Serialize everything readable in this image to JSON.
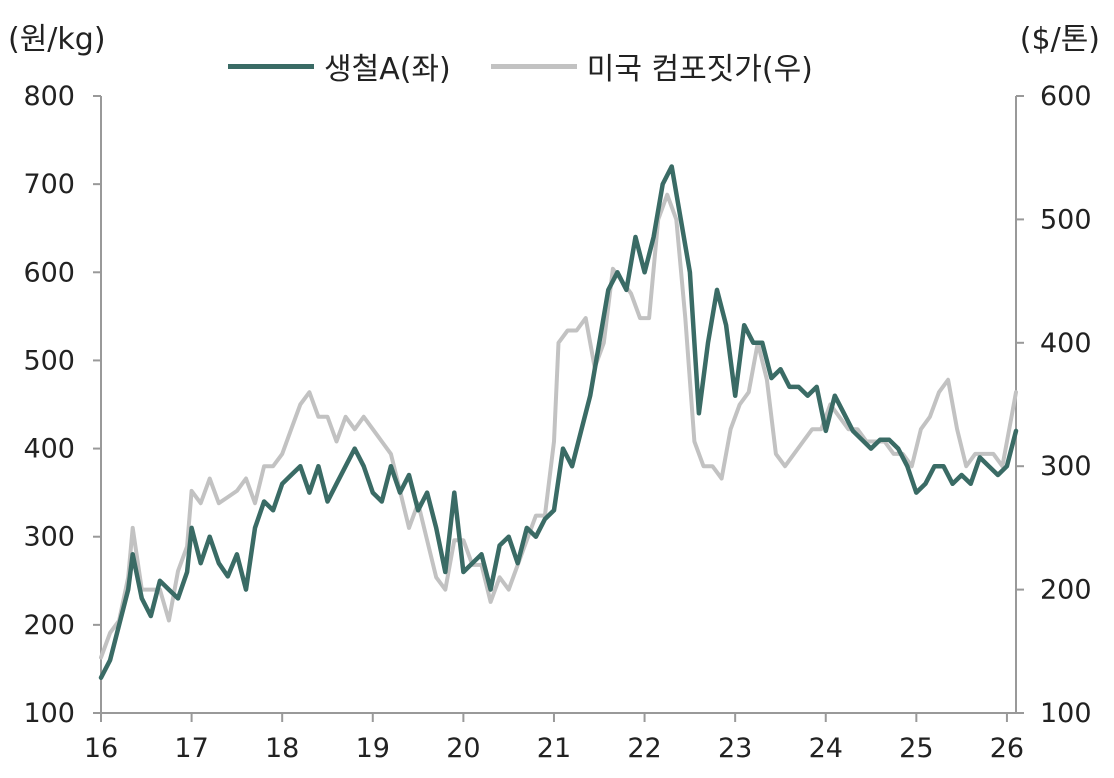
{
  "units": {
    "left": "(원/kg)",
    "right": "($/톤)"
  },
  "colors": {
    "pig_iron": "#3a6b65",
    "scrap": "#c2c2c2",
    "axis": "#999999"
  },
  "chart_data": {
    "type": "line",
    "legend_position": "top",
    "grid": false,
    "x_ticks": [
      "16",
      "17",
      "18",
      "19",
      "20",
      "21",
      "22",
      "23",
      "24",
      "25",
      "26"
    ],
    "x_range": [
      16,
      26.1
    ],
    "y_left": {
      "ticks": [
        100,
        200,
        300,
        400,
        500,
        600,
        700,
        800
      ],
      "range": [
        100,
        800
      ]
    },
    "y_right": {
      "ticks": [
        100,
        200,
        300,
        400,
        500,
        600
      ],
      "range": [
        100,
        600
      ]
    },
    "series": [
      {
        "name": "생철A(좌)",
        "axis": "left",
        "x": [
          16.0,
          16.1,
          16.2,
          16.3,
          16.35,
          16.45,
          16.55,
          16.65,
          16.75,
          16.85,
          16.95,
          17.0,
          17.1,
          17.2,
          17.3,
          17.4,
          17.5,
          17.6,
          17.7,
          17.8,
          17.9,
          18.0,
          18.1,
          18.2,
          18.3,
          18.4,
          18.5,
          18.6,
          18.7,
          18.8,
          18.9,
          19.0,
          19.1,
          19.2,
          19.3,
          19.4,
          19.5,
          19.6,
          19.7,
          19.8,
          19.9,
          20.0,
          20.1,
          20.2,
          20.3,
          20.4,
          20.5,
          20.6,
          20.7,
          20.8,
          20.9,
          21.0,
          21.1,
          21.2,
          21.3,
          21.4,
          21.5,
          21.6,
          21.7,
          21.8,
          21.9,
          22.0,
          22.1,
          22.2,
          22.3,
          22.4,
          22.5,
          22.6,
          22.7,
          22.8,
          22.9,
          23.0,
          23.1,
          23.2,
          23.3,
          23.4,
          23.5,
          23.6,
          23.7,
          23.8,
          23.9,
          24.0,
          24.1,
          24.2,
          24.3,
          24.4,
          24.5,
          24.6,
          24.7,
          24.8,
          24.9,
          25.0,
          25.1,
          25.2,
          25.3,
          25.4,
          25.5,
          25.6,
          25.7,
          25.8,
          25.9,
          26.0,
          26.1
        ],
        "values": [
          140,
          160,
          200,
          240,
          280,
          230,
          210,
          250,
          240,
          230,
          260,
          310,
          270,
          300,
          270,
          255,
          280,
          240,
          310,
          340,
          330,
          360,
          370,
          380,
          350,
          380,
          340,
          360,
          380,
          400,
          380,
          350,
          340,
          380,
          350,
          370,
          330,
          350,
          310,
          260,
          350,
          260,
          270,
          280,
          240,
          290,
          300,
          270,
          310,
          300,
          320,
          330,
          400,
          380,
          420,
          460,
          520,
          580,
          600,
          580,
          640,
          600,
          640,
          700,
          720,
          660,
          600,
          440,
          520,
          580,
          540,
          460,
          540,
          520,
          520,
          480,
          490,
          470,
          470,
          460,
          470,
          420,
          460,
          440,
          420,
          410,
          400,
          410,
          410,
          400,
          380,
          350,
          360,
          380,
          380,
          360,
          370,
          360,
          390,
          380,
          370,
          380,
          420
        ]
      },
      {
        "name": "미국 컴포짓가(우)",
        "axis": "right",
        "x": [
          16.0,
          16.1,
          16.2,
          16.3,
          16.35,
          16.45,
          16.55,
          16.65,
          16.75,
          16.85,
          16.95,
          17.0,
          17.1,
          17.2,
          17.3,
          17.4,
          17.5,
          17.6,
          17.7,
          17.8,
          17.9,
          18.0,
          18.1,
          18.2,
          18.3,
          18.4,
          18.5,
          18.6,
          18.7,
          18.8,
          18.9,
          19.0,
          19.1,
          19.2,
          19.3,
          19.4,
          19.5,
          19.6,
          19.7,
          19.8,
          19.9,
          20.0,
          20.1,
          20.2,
          20.3,
          20.4,
          20.5,
          20.6,
          20.7,
          20.8,
          20.9,
          21.0,
          21.05,
          21.15,
          21.25,
          21.35,
          21.45,
          21.55,
          21.65,
          21.75,
          21.85,
          21.95,
          22.05,
          22.15,
          22.25,
          22.35,
          22.45,
          22.55,
          22.65,
          22.75,
          22.85,
          22.95,
          23.05,
          23.15,
          23.25,
          23.35,
          23.45,
          23.55,
          23.65,
          23.75,
          23.85,
          23.95,
          24.05,
          24.15,
          24.25,
          24.35,
          24.45,
          24.55,
          24.65,
          24.75,
          24.85,
          24.95,
          25.05,
          25.15,
          25.25,
          25.35,
          25.45,
          25.55,
          25.65,
          25.75,
          25.85,
          25.95,
          26.05,
          26.1
        ],
        "values": [
          145,
          165,
          175,
          210,
          250,
          200,
          200,
          200,
          175,
          215,
          235,
          280,
          270,
          290,
          270,
          275,
          280,
          290,
          270,
          300,
          300,
          310,
          330,
          350,
          360,
          340,
          340,
          320,
          340,
          330,
          340,
          330,
          320,
          310,
          280,
          250,
          270,
          240,
          210,
          200,
          240,
          240,
          220,
          220,
          190,
          210,
          200,
          220,
          240,
          260,
          260,
          320,
          400,
          410,
          410,
          420,
          380,
          400,
          460,
          450,
          440,
          420,
          420,
          500,
          520,
          500,
          420,
          320,
          300,
          300,
          290,
          330,
          350,
          360,
          400,
          370,
          310,
          300,
          310,
          320,
          330,
          330,
          350,
          340,
          330,
          330,
          320,
          320,
          320,
          310,
          310,
          300,
          330,
          340,
          360,
          370,
          330,
          300,
          310,
          310,
          310,
          300,
          340,
          360
        ]
      }
    ]
  }
}
